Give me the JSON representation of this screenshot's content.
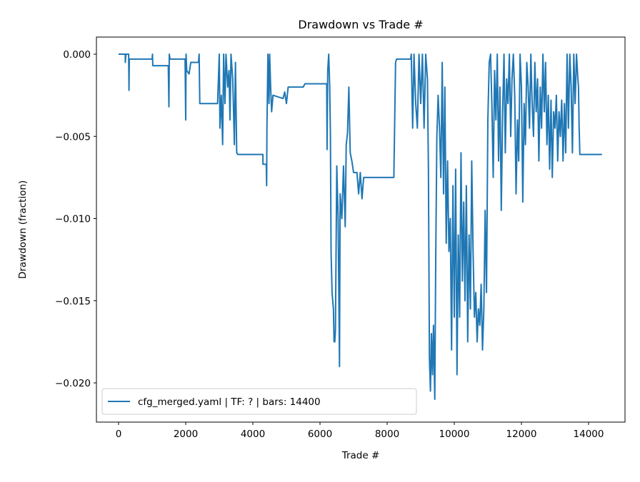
{
  "chart_data": {
    "type": "line",
    "title": "Drawdown vs Trade #",
    "xlabel": "Trade #",
    "ylabel": "Drawdown (fraction)",
    "xlim": [
      -700,
      15100
    ],
    "ylim": [
      -0.0224,
      0.001
    ],
    "xticks": [
      0,
      2000,
      4000,
      6000,
      8000,
      10000,
      12000,
      14000
    ],
    "xtick_labels": [
      "0",
      "2000",
      "4000",
      "6000",
      "8000",
      "10000",
      "12000",
      "14000"
    ],
    "yticks": [
      0,
      -0.005,
      -0.01,
      -0.015,
      -0.02
    ],
    "ytick_labels": [
      "0.000",
      "−0.005",
      "−0.010",
      "−0.015",
      "−0.020"
    ],
    "grid": false,
    "legend_position": "lower-left",
    "series": [
      {
        "name": "cfg_merged.yaml | TF: ? | bars: 14400",
        "color": "#1f77b4",
        "points": [
          [
            0,
            0
          ],
          [
            200,
            0
          ],
          [
            200,
            -0.0005
          ],
          [
            220,
            0
          ],
          [
            300,
            0
          ],
          [
            310,
            -0.0022
          ],
          [
            320,
            -0.0003
          ],
          [
            1000,
            -0.0003
          ],
          [
            1010,
            0
          ],
          [
            1020,
            -0.0007
          ],
          [
            1480,
            -0.0007
          ],
          [
            1500,
            -0.0032
          ],
          [
            1510,
            0
          ],
          [
            1530,
            -0.0003
          ],
          [
            1980,
            -0.0003
          ],
          [
            2000,
            -0.004
          ],
          [
            2010,
            0
          ],
          [
            2030,
            -0.001
          ],
          [
            2100,
            -0.0012
          ],
          [
            2150,
            -0.0005
          ],
          [
            2380,
            -0.0005
          ],
          [
            2400,
            0
          ],
          [
            2420,
            -0.003
          ],
          [
            2950,
            -0.003
          ],
          [
            3000,
            0
          ],
          [
            3020,
            -0.0045
          ],
          [
            3060,
            -0.0025
          ],
          [
            3100,
            -0.0055
          ],
          [
            3130,
            0
          ],
          [
            3170,
            -0.003
          ],
          [
            3200,
            0
          ],
          [
            3250,
            -0.002
          ],
          [
            3290,
            -0.001
          ],
          [
            3320,
            -0.004
          ],
          [
            3350,
            0
          ],
          [
            3400,
            -0.0015
          ],
          [
            3420,
            -0.003
          ],
          [
            3450,
            -0.0055
          ],
          [
            3480,
            -0.0005
          ],
          [
            3520,
            -0.006
          ],
          [
            3550,
            -0.0061
          ],
          [
            4300,
            -0.0061
          ],
          [
            4300,
            -0.0067
          ],
          [
            4400,
            -0.0067
          ],
          [
            4410,
            -0.008
          ],
          [
            4420,
            -0.0045
          ],
          [
            4450,
            0
          ],
          [
            4480,
            -0.003
          ],
          [
            4500,
            0
          ],
          [
            4530,
            -0.002
          ],
          [
            4560,
            -0.0035
          ],
          [
            4600,
            -0.0025
          ],
          [
            4900,
            -0.0027
          ],
          [
            4950,
            -0.0023
          ],
          [
            5000,
            -0.003
          ],
          [
            5050,
            -0.002
          ],
          [
            5500,
            -0.002
          ],
          [
            5550,
            -0.0018
          ],
          [
            6200,
            -0.0018
          ],
          [
            6210,
            -0.0058
          ],
          [
            6230,
            -0.001
          ],
          [
            6260,
            0
          ],
          [
            6290,
            -0.002
          ],
          [
            6310,
            -0.005
          ],
          [
            6330,
            -0.012
          ],
          [
            6360,
            -0.0145
          ],
          [
            6400,
            -0.0155
          ],
          [
            6420,
            -0.0175
          ],
          [
            6440,
            -0.0175
          ],
          [
            6460,
            -0.0168
          ],
          [
            6500,
            -0.0068
          ],
          [
            6540,
            -0.01
          ],
          [
            6580,
            -0.019
          ],
          [
            6600,
            -0.0085
          ],
          [
            6650,
            -0.01
          ],
          [
            6700,
            -0.0068
          ],
          [
            6750,
            -0.0105
          ],
          [
            6780,
            -0.0055
          ],
          [
            6820,
            -0.0048
          ],
          [
            6860,
            -0.002
          ],
          [
            6900,
            -0.006
          ],
          [
            6950,
            -0.0065
          ],
          [
            7000,
            -0.0072
          ],
          [
            7100,
            -0.0072
          ],
          [
            7150,
            -0.0085
          ],
          [
            7200,
            -0.0072
          ],
          [
            7250,
            -0.0088
          ],
          [
            7300,
            -0.0075
          ],
          [
            8200,
            -0.0075
          ],
          [
            8250,
            -0.0005
          ],
          [
            8280,
            -0.0003
          ],
          [
            8700,
            -0.0003
          ],
          [
            8720,
            0
          ],
          [
            8760,
            -0.0045
          ],
          [
            8800,
            0
          ],
          [
            8850,
            -0.003
          ],
          [
            8900,
            -0.0045
          ],
          [
            8950,
            0
          ],
          [
            9000,
            -0.003
          ],
          [
            9050,
            0
          ],
          [
            9100,
            -0.0045
          ],
          [
            9150,
            0
          ],
          [
            9200,
            -0.0015
          ],
          [
            9230,
            -0.007
          ],
          [
            9260,
            -0.0185
          ],
          [
            9290,
            -0.0205
          ],
          [
            9320,
            -0.017
          ],
          [
            9350,
            -0.0195
          ],
          [
            9380,
            -0.0165
          ],
          [
            9420,
            -0.021
          ],
          [
            9450,
            -0.012
          ],
          [
            9480,
            -0.005
          ],
          [
            9520,
            -0.0025
          ],
          [
            9560,
            -0.0045
          ],
          [
            9600,
            -0.0075
          ],
          [
            9640,
            -0.0005
          ],
          [
            9680,
            -0.0085
          ],
          [
            9720,
            -0.002
          ],
          [
            9760,
            -0.0115
          ],
          [
            9800,
            -0.0065
          ],
          [
            9840,
            -0.012
          ],
          [
            9880,
            -0.01
          ],
          [
            9920,
            -0.018
          ],
          [
            9960,
            -0.008
          ],
          [
            10000,
            -0.016
          ],
          [
            10040,
            -0.007
          ],
          [
            10080,
            -0.0195
          ],
          [
            10120,
            -0.011
          ],
          [
            10160,
            -0.016
          ],
          [
            10200,
            -0.006
          ],
          [
            10240,
            -0.0138
          ],
          [
            10280,
            -0.009
          ],
          [
            10320,
            -0.015
          ],
          [
            10360,
            -0.008
          ],
          [
            10400,
            -0.0175
          ],
          [
            10440,
            -0.011
          ],
          [
            10480,
            -0.0155
          ],
          [
            10520,
            -0.0065
          ],
          [
            10560,
            -0.012
          ],
          [
            10600,
            -0.016
          ],
          [
            10640,
            -0.0145
          ],
          [
            10680,
            -0.0175
          ],
          [
            10720,
            -0.0155
          ],
          [
            10760,
            -0.0165
          ],
          [
            10800,
            -0.014
          ],
          [
            10840,
            -0.018
          ],
          [
            10880,
            -0.0155
          ],
          [
            10920,
            -0.0095
          ],
          [
            10960,
            -0.0145
          ],
          [
            11000,
            -0.004
          ],
          [
            11040,
            -0.0005
          ],
          [
            11080,
            0
          ],
          [
            11120,
            -0.003
          ],
          [
            11160,
            -0.0075
          ],
          [
            11200,
            -0.001
          ],
          [
            11240,
            -0.004
          ],
          [
            11280,
            0
          ],
          [
            11320,
            -0.0065
          ],
          [
            11360,
            -0.002
          ],
          [
            11400,
            -0.0095
          ],
          [
            11440,
            -0.0035
          ],
          [
            11480,
            0
          ],
          [
            11520,
            -0.006
          ],
          [
            11560,
            -0.0015
          ],
          [
            11600,
            -0.003
          ],
          [
            11640,
            0
          ],
          [
            11680,
            -0.005
          ],
          [
            11720,
            -0.0015
          ],
          [
            11760,
            0
          ],
          [
            11800,
            -0.0025
          ],
          [
            11840,
            -0.0085
          ],
          [
            11880,
            -0.004
          ],
          [
            11920,
            -0.0065
          ],
          [
            11960,
            0
          ],
          [
            12000,
            -0.002
          ],
          [
            12040,
            -0.009
          ],
          [
            12080,
            -0.003
          ],
          [
            12120,
            -0.0055
          ],
          [
            12160,
            -0.0005
          ],
          [
            12200,
            -0.002
          ],
          [
            12240,
            -0.0045
          ],
          [
            12280,
            0
          ],
          [
            12320,
            -0.003
          ],
          [
            12360,
            -0.005
          ],
          [
            12400,
            -0.0005
          ],
          [
            12440,
            -0.0035
          ],
          [
            12480,
            -0.0015
          ],
          [
            12520,
            -0.0065
          ],
          [
            12560,
            -0.002
          ],
          [
            12600,
            -0.0045
          ],
          [
            12640,
            0
          ],
          [
            12680,
            -0.0035
          ],
          [
            12720,
            -0.0005
          ],
          [
            12760,
            -0.0055
          ],
          [
            12800,
            -0.0025
          ],
          [
            12840,
            -0.007
          ],
          [
            12880,
            -0.0028
          ],
          [
            12920,
            -0.0075
          ],
          [
            12960,
            -0.0035
          ],
          [
            13000,
            -0.0045
          ],
          [
            13040,
            -0.0025
          ],
          [
            13080,
            -0.0065
          ],
          [
            13120,
            -0.0035
          ],
          [
            13160,
            -0.005
          ],
          [
            13200,
            -0.0028
          ],
          [
            13240,
            -0.0065
          ],
          [
            13280,
            -0.003
          ],
          [
            13320,
            -0.006
          ],
          [
            13360,
            0
          ],
          [
            13400,
            -0.0045
          ],
          [
            13440,
            0
          ],
          [
            13480,
            -0.002
          ],
          [
            13520,
            -0.006
          ],
          [
            13560,
            0
          ],
          [
            13600,
            -0.003
          ],
          [
            13640,
            0
          ],
          [
            13680,
            -0.0015
          ],
          [
            13700,
            -0.002
          ],
          [
            13720,
            -0.0045
          ],
          [
            13740,
            -0.0061
          ],
          [
            14400,
            -0.0061
          ]
        ]
      }
    ]
  }
}
